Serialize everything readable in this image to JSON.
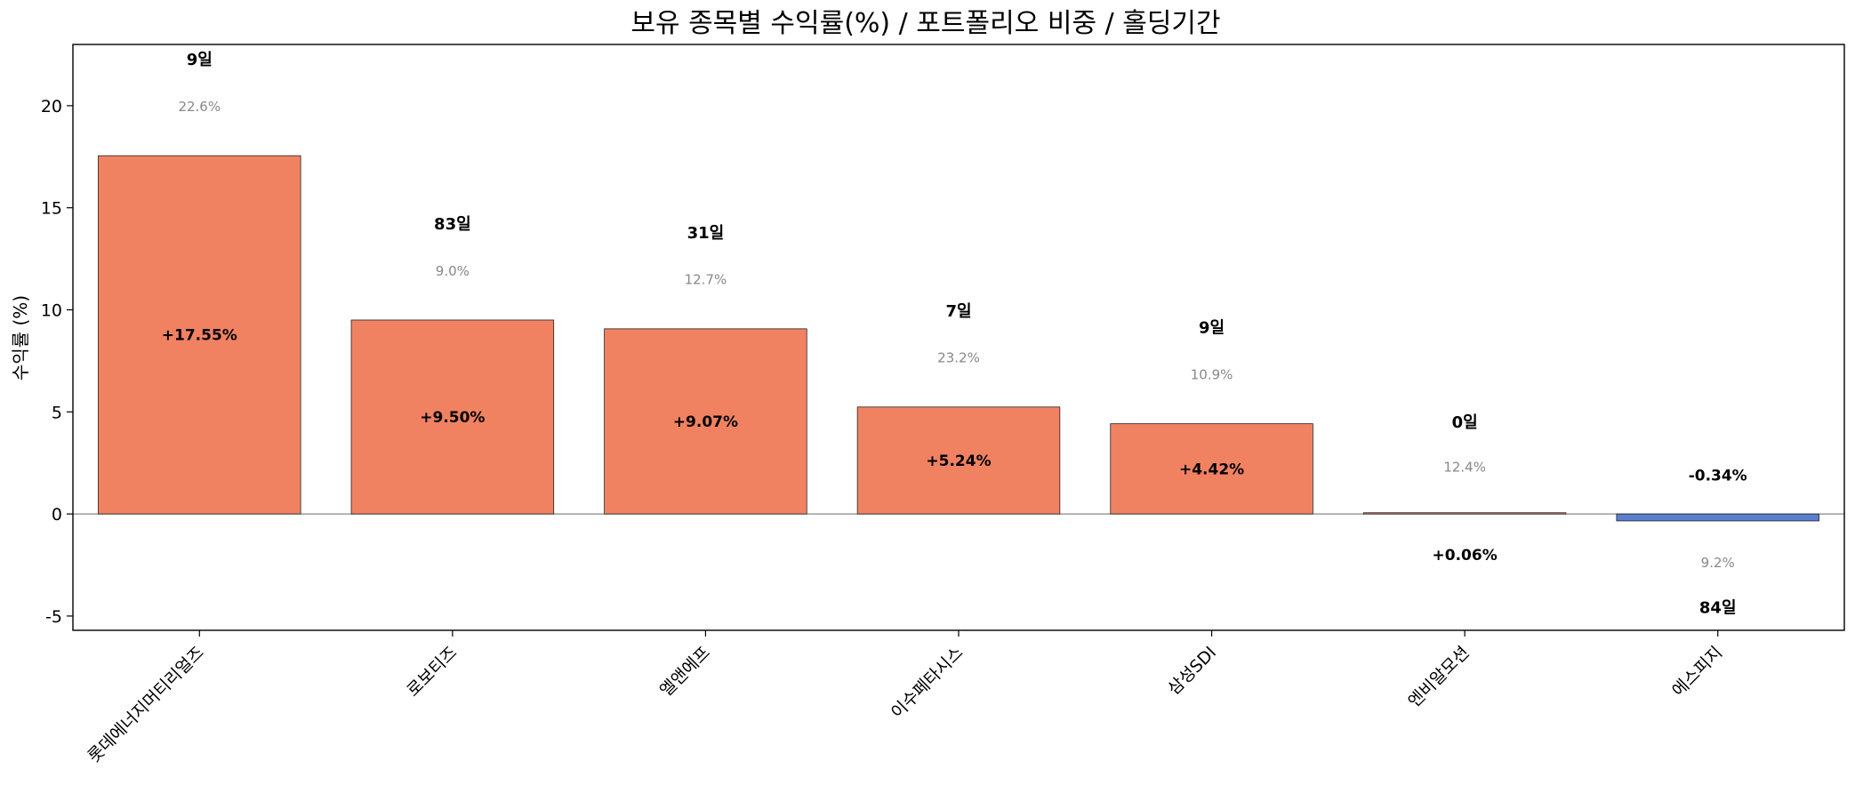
{
  "chart_data": {
    "type": "bar",
    "title": "보유 종목별 수익률(%) / 포트폴리오 비중 / 홀딩기간",
    "xlabel": "",
    "ylabel": "수익률 (%)",
    "ylim": [
      -5.7,
      23
    ],
    "yticks": [
      -5,
      0,
      5,
      10,
      15,
      20
    ],
    "ytick_labels": [
      "-5",
      "0",
      "5",
      "10",
      "15",
      "20"
    ],
    "grid": false,
    "categories": [
      "롯데에너지머티리얼즈",
      "로보티즈",
      "엘앤에프",
      "이수페타시스",
      "삼성SDI",
      "엔비알모션",
      "에스피지"
    ],
    "values": [
      17.55,
      9.5,
      9.07,
      5.24,
      4.42,
      0.06,
      -0.34
    ],
    "value_labels": [
      "+17.55%",
      "+9.50%",
      "+9.07%",
      "+5.24%",
      "+4.42%",
      "+0.06%",
      "-0.34%"
    ],
    "weights": [
      22.6,
      9.0,
      12.7,
      23.2,
      10.9,
      12.4,
      9.2
    ],
    "weight_labels": [
      "22.6%",
      "9.0%",
      "12.7%",
      "23.2%",
      "10.9%",
      "12.4%",
      "9.2%"
    ],
    "holding_days": [
      9,
      83,
      31,
      7,
      9,
      0,
      84
    ],
    "days_labels": [
      "9일",
      "83일",
      "31일",
      "7일",
      "9일",
      "0일",
      "84일"
    ],
    "colors": {
      "positive": "#f08262",
      "negative": "#5b7fd0",
      "edge": "#222222",
      "zero_line": "#888888",
      "weight_text": "#888888"
    }
  }
}
